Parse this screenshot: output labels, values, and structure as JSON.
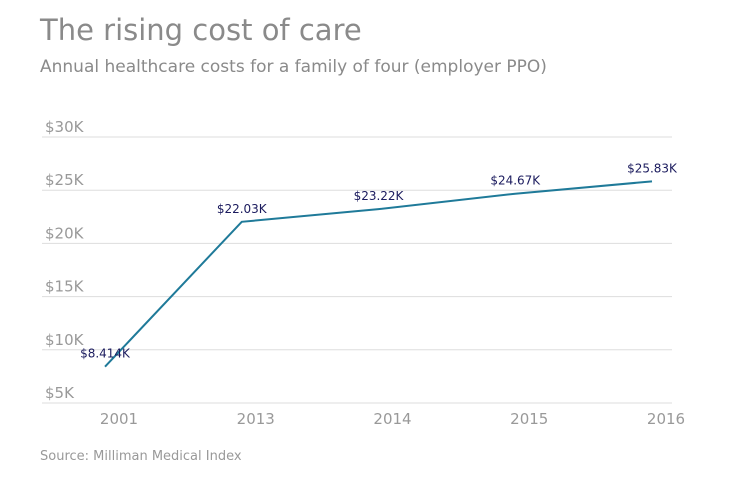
{
  "chart_data": {
    "type": "line",
    "title": "The rising cost of care",
    "subtitle": "Annual healthcare costs for a family of four (employer PPO)",
    "source": "Source: Milliman Medical Index",
    "categories": [
      "2001",
      "2013",
      "2014",
      "2015",
      "2016"
    ],
    "series": [
      {
        "color": "#1f7a99",
        "values": [
          8414,
          22030,
          23220,
          24670,
          25830
        ],
        "value_labels": [
          "$8.414K",
          "$22.03K",
          "$23.22K",
          "$24.67K",
          "$25.83K"
        ]
      }
    ],
    "ylim": [
      5000,
      30000
    ],
    "yticks": [
      {
        "value": 5000,
        "label": "$5K"
      },
      {
        "value": 10000,
        "label": "$10K"
      },
      {
        "value": 15000,
        "label": "$15K"
      },
      {
        "value": 20000,
        "label": "$20K"
      },
      {
        "value": 25000,
        "label": "$25K"
      },
      {
        "value": 30000,
        "label": "$30K"
      }
    ],
    "grid": true
  }
}
